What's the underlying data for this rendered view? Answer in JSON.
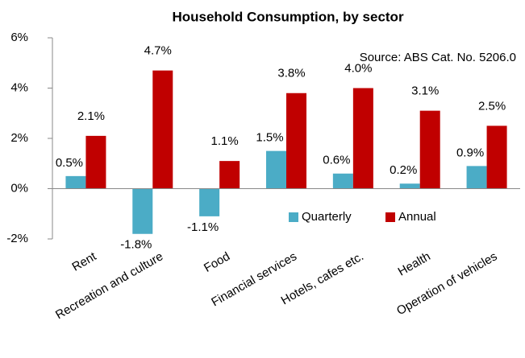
{
  "chart_data": {
    "type": "bar",
    "title": "Household Consumption, by sector",
    "annotation": "Source: ABS Cat. No. 5206.0",
    "categories": [
      "Rent",
      "Recreation and culture",
      "Food",
      "Financial services",
      "Hotels, cafes etc.",
      "Health",
      "Operation of vehicles"
    ],
    "series": [
      {
        "name": "Quarterly",
        "color": "#4bacc6",
        "values": [
          0.5,
          -1.8,
          -1.1,
          1.5,
          0.6,
          0.2,
          0.9
        ],
        "value_labels": [
          "0.5%",
          "-1.8%",
          "-1.1%",
          "1.5%",
          "0.6%",
          "0.2%",
          "0.9%"
        ]
      },
      {
        "name": "Annual",
        "color": "#c00000",
        "values": [
          2.1,
          4.7,
          1.1,
          3.8,
          4.0,
          3.1,
          2.5
        ],
        "value_labels": [
          "2.1%",
          "4.7%",
          "1.1%",
          "3.8%",
          "4.0%",
          "3.1%",
          "2.5%"
        ]
      }
    ],
    "ylim": [
      -2,
      6
    ],
    "yticks": [
      {
        "value": -2,
        "label": "-2%"
      },
      {
        "value": 0,
        "label": "0%"
      },
      {
        "value": 2,
        "label": "2%"
      },
      {
        "value": 4,
        "label": "4%"
      },
      {
        "value": 6,
        "label": "6%"
      }
    ],
    "grid": false,
    "legend": "lower right"
  }
}
